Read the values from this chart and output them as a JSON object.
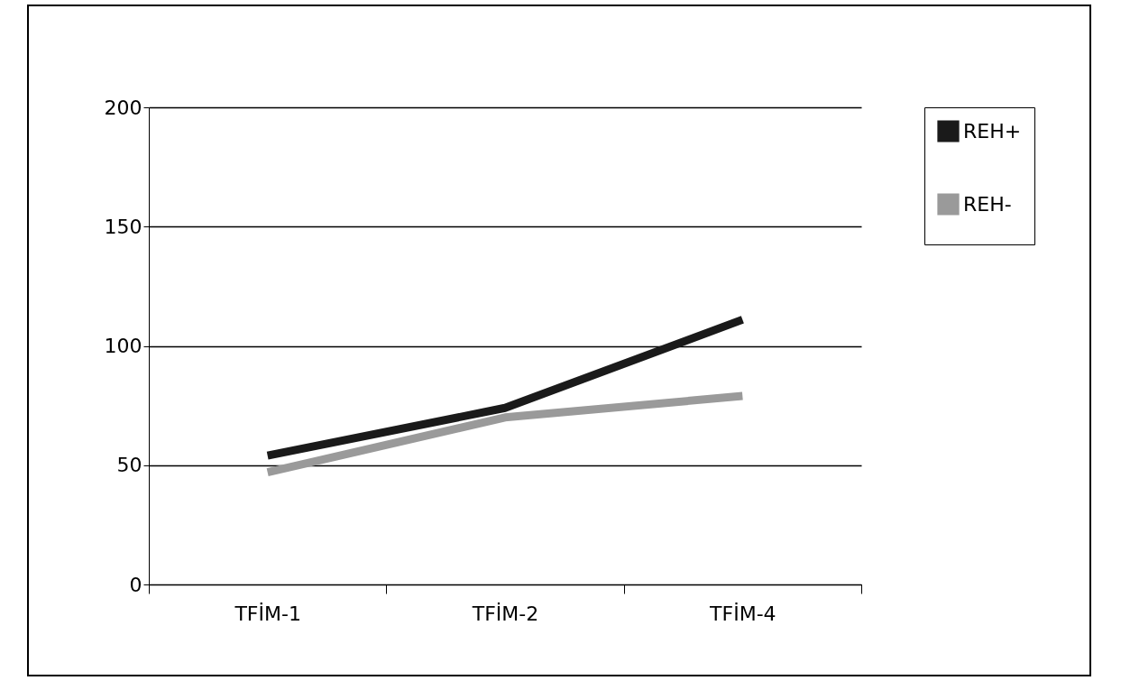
{
  "chart_data": {
    "type": "line",
    "categories": [
      "TFİM-1",
      "TFİM-2",
      "TFİM-4"
    ],
    "series": [
      {
        "name": "REH+",
        "color": "#1a1a1a",
        "values": [
          54,
          74,
          111
        ]
      },
      {
        "name": "REH-",
        "color": "#9a9a9a",
        "values": [
          47,
          70,
          79
        ]
      }
    ],
    "ylim": [
      0,
      200
    ],
    "yticks": [
      0,
      50,
      100,
      150,
      200
    ],
    "grid": "y",
    "legend": "right",
    "marker": "none",
    "line_style": "solid"
  }
}
